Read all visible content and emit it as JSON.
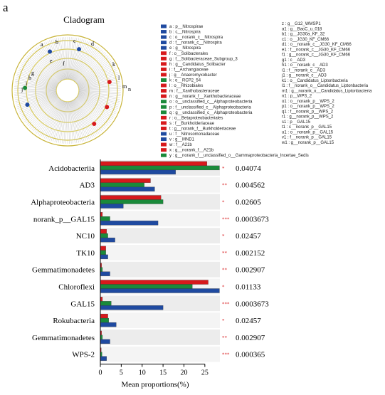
{
  "panel_label": "a",
  "cladogram": {
    "title": "Cladogram",
    "node_labels": [
      "a",
      "b",
      "c",
      "d",
      "e",
      "f",
      "g",
      "h",
      "i",
      "j",
      "k",
      "l",
      "m",
      "n"
    ],
    "legend": [
      {
        "label": "a : p__Nitrospirae",
        "color": "#1f4aa0"
      },
      {
        "label": "b : c__Nitrospira",
        "color": "#1f4aa0"
      },
      {
        "label": "c : o__norank_c__Nitrospira",
        "color": "#1f4aa0"
      },
      {
        "label": "d : f__norank_c__Nitrospira",
        "color": "#1f4aa0"
      },
      {
        "label": "e : g__Nitrospira",
        "color": "#1f4aa0"
      },
      {
        "label": "f : o__Solibacterales",
        "color": "#d7191c"
      },
      {
        "label": "g : f__Solibacteraceae_Subgroup_3",
        "color": "#d7191c"
      },
      {
        "label": "h : g__Candidatus_Solibacter",
        "color": "#d7191c"
      },
      {
        "label": "i : f__Archangiaceae",
        "color": "#d7191c"
      },
      {
        "label": "j : g__Anaeromyxobacter",
        "color": "#d7191c"
      },
      {
        "label": "k : o__RCP2_54",
        "color": "#1a8a3a"
      },
      {
        "label": "l : o__Rhizobiales",
        "color": "#d7191c"
      },
      {
        "label": "m : f__Xanthobacteraceae",
        "color": "#d7191c"
      },
      {
        "label": "n : g__norank_f__Xanthobacteraceae",
        "color": "#d7191c"
      },
      {
        "label": "o : o__unclassified_c__Alphaproteobacteria",
        "color": "#1a8a3a"
      },
      {
        "label": "p : f__unclassified_c__Alphaproteobacteria",
        "color": "#1a8a3a"
      },
      {
        "label": "q : g__unclassified_c__Alphaproteobacteria",
        "color": "#1a8a3a"
      },
      {
        "label": "r : o__Betaproteobacteriales",
        "color": "#d7191c"
      },
      {
        "label": "s : f__Burkholderiaceae",
        "color": "#d7191c"
      },
      {
        "label": "t : g__norank_f__Burkholderiaceae",
        "color": "#d7191c"
      },
      {
        "label": "u : f__Nitrosomonadaceae",
        "color": "#1f4aa0"
      },
      {
        "label": "v : g__MND1",
        "color": "#1f4aa0"
      },
      {
        "label": "w : f__A21b",
        "color": "#d7191c"
      },
      {
        "label": "x : g__norank_f__A21b",
        "color": "#d7191c"
      },
      {
        "label": "y : g__norank_f__unclassified_o__Gammaproteobacteria_Incertae_Sedis",
        "color": "#1a8a3a"
      }
    ],
    "legend_more": [
      "z : g__G12_WMSP1",
      "a1 : g__BacC_u_018",
      "b1 : g__JG30a_KF_32",
      "c1 : o__JG30_KF_CM66",
      "d1 : o__norank_c__JG30_KF_CM66",
      "e1 : f__norank_c__JG30_KF_CM66",
      "f1 : g__norank_c__JG30_KF_CM66",
      "g1 : c__AD3",
      "h1 : o__norank_c__AD3",
      "i1 : f__norank_c__AD3",
      "j1 : g__norank_c__AD3",
      "k1 : o__Candidatus_Liptonbacteria",
      "l1 : f__norank_o__Candidatus_Liptonbacteria",
      "m1 : g__norank_o__Candidatus_Liptonbacteria",
      "n1 : p__WPS_2",
      "o1 : o__norank_p__WPS_2",
      "p1 : o__norank_p__WPS_2",
      "q1 : f__norank_p__WPS_2",
      "r1 : g__norank_p__WPS_2",
      "s1 : p__GAL15",
      "t1 : c__norank_p__GAL15",
      "u1 : o__norank_p__GAL15",
      "v1 : f__norank_p__GAL15",
      "w1 : g__norank_p__GAL15"
    ]
  },
  "chart_data": {
    "type": "hbar",
    "x_label": "Mean proportions(%)",
    "categories": [
      "Acidobacteriia",
      "AD3",
      "Alphaproteobacteria",
      "norank_p__GAL15",
      "NC10",
      "TK10",
      "Gemmatimonadetes",
      "Chloroflexi",
      "GAL15",
      "Rokubacteria",
      "Gemmatimonadetes",
      "WPS-2"
    ],
    "series": [
      {
        "color": "#d7191c",
        "values": [
          25.5,
          12,
          14.5,
          0.5,
          1.5,
          1.3,
          0.3,
          25.8,
          0.5,
          1.8,
          0.3,
          0.2
        ]
      },
      {
        "color": "#1a8a3a",
        "values": [
          28.5,
          10.5,
          15,
          2.3,
          1.8,
          1.3,
          0.5,
          22,
          2.6,
          2,
          0.5,
          0.4
        ]
      },
      {
        "color": "#1f4aa0",
        "values": [
          18,
          13,
          5.5,
          13.8,
          3.5,
          1.8,
          2.3,
          28.5,
          15,
          3.8,
          2.3,
          1.5
        ]
      }
    ],
    "significance": [
      "*",
      "**",
      "*",
      "***",
      "*",
      "**",
      "**",
      "*",
      "***",
      "*",
      "**",
      "***"
    ],
    "p_values": [
      0.04074,
      0.004562,
      0.02605,
      0.0003673,
      0.02457,
      0.002152,
      0.002907,
      0.01133,
      0.0003673,
      0.02457,
      0.002907,
      0.000365
    ],
    "xlim": [
      0,
      28.6
    ],
    "xticks": [
      0,
      5,
      10,
      15,
      20,
      25
    ]
  }
}
